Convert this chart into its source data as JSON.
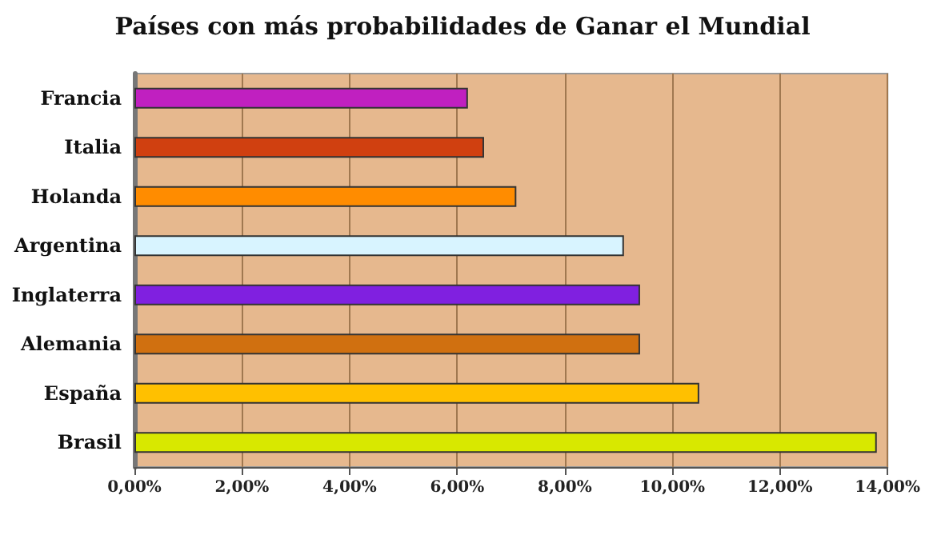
{
  "chart_data": {
    "type": "bar",
    "orientation": "horizontal",
    "title": "Países con más probabilidades de Ganar el Mundial",
    "categories": [
      "Francia",
      "Italia",
      "Holanda",
      "Argentina",
      "Inglaterra",
      "Alemania",
      "España",
      "Brasil"
    ],
    "values": [
      6.2,
      6.5,
      7.1,
      9.1,
      9.4,
      9.4,
      10.5,
      13.8
    ],
    "colors": [
      "#c020c0",
      "#d04010",
      "#ff8c00",
      "#d8f4ff",
      "#8020e0",
      "#d07010",
      "#ffc000",
      "#d8e800"
    ],
    "xlim": [
      0,
      14
    ],
    "xticks": [
      {
        "value": 0,
        "label": "0,00%"
      },
      {
        "value": 2,
        "label": "2,00%"
      },
      {
        "value": 4,
        "label": "4,00%"
      },
      {
        "value": 6,
        "label": "6,00%"
      },
      {
        "value": 8,
        "label": "8,00%"
      },
      {
        "value": 10,
        "label": "10,00%"
      },
      {
        "value": 12,
        "label": "12,00%"
      },
      {
        "value": 14,
        "label": "14,00%"
      }
    ],
    "grid": "x"
  }
}
